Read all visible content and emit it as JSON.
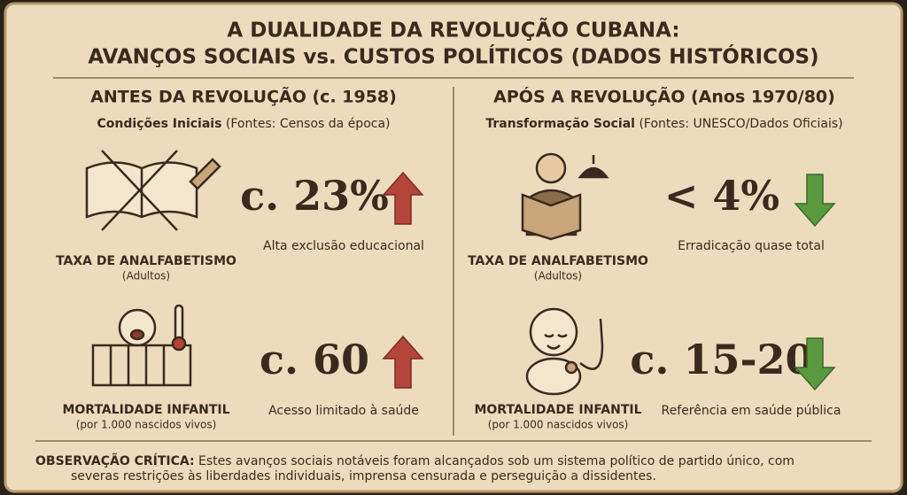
{
  "title": {
    "line1": "A DUALIDADE DA REVOLUÇÃO CUBANA:",
    "line2": "AVANÇOS SOCIAIS vs. CUSTOS POLÍTICOS (DADOS HISTÓRICOS)"
  },
  "panels": [
    {
      "heading": "ANTES DA REVOLUÇÃO (c. 1958)",
      "subheading_bold": "Condições Iniciais",
      "subheading": "(Fontes: Censos da época)",
      "items": [
        {
          "label": "TAXA DE ANALFABETISMO",
          "sublabel": "(Adultos)",
          "stat": "c. 23%",
          "trend": "up",
          "caption": "Alta exclusão educacional"
        },
        {
          "label": "MORTALIDADE INFANTIL",
          "sublabel": "(por 1.000 nascidos vivos)",
          "stat": "c. 60",
          "trend": "up",
          "caption": "Acesso limitado à saúde"
        }
      ]
    },
    {
      "heading": "APÓS A REVOLUÇÃO (Anos 1970/80)",
      "subheading_bold": "Transformação Social",
      "subheading": "(Fontes: UNESCO/Dados Oficiais)",
      "items": [
        {
          "label": "TAXA DE ANALFABETISMO",
          "sublabel": "(Adultos)",
          "stat": "< 4%",
          "trend": "down",
          "caption": "Erradicação quase total"
        },
        {
          "label": "MORTALIDADE INFANTIL",
          "sublabel": "(por 1.000 nascidos vivos)",
          "stat": "c. 15-20",
          "trend": "down",
          "caption": "Referência em saúde pública"
        }
      ]
    }
  ],
  "note": {
    "label": "OBSERVAÇÃO CRÍTICA:",
    "lines": [
      "Estes avanços sociais notáveis foram alcançados sob um sistema político de partido único, com",
      "severas restrições às liberdades individuais, imprensa censurada e perseguição a dissidentes."
    ]
  }
}
